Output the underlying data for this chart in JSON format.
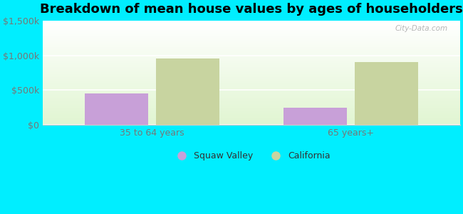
{
  "title": "Breakdown of mean house values by ages of householders",
  "categories": [
    "35 to 64 years",
    "65 years+"
  ],
  "squaw_valley_values": [
    450000,
    250000
  ],
  "california_values": [
    960000,
    910000
  ],
  "ylim": [
    0,
    1500000
  ],
  "yticks": [
    0,
    500000,
    1000000,
    1500000
  ],
  "ytick_labels": [
    "$0",
    "$500k",
    "$1,000k",
    "$1,500k"
  ],
  "squaw_valley_color": "#c8a0d8",
  "california_color": "#c8d4a0",
  "background_color": "#00eeff",
  "legend_squaw": "Squaw Valley",
  "legend_california": "California",
  "watermark": "City-Data.com",
  "title_fontsize": 13,
  "bar_width": 0.32,
  "xlim": [
    -0.55,
    1.55
  ]
}
